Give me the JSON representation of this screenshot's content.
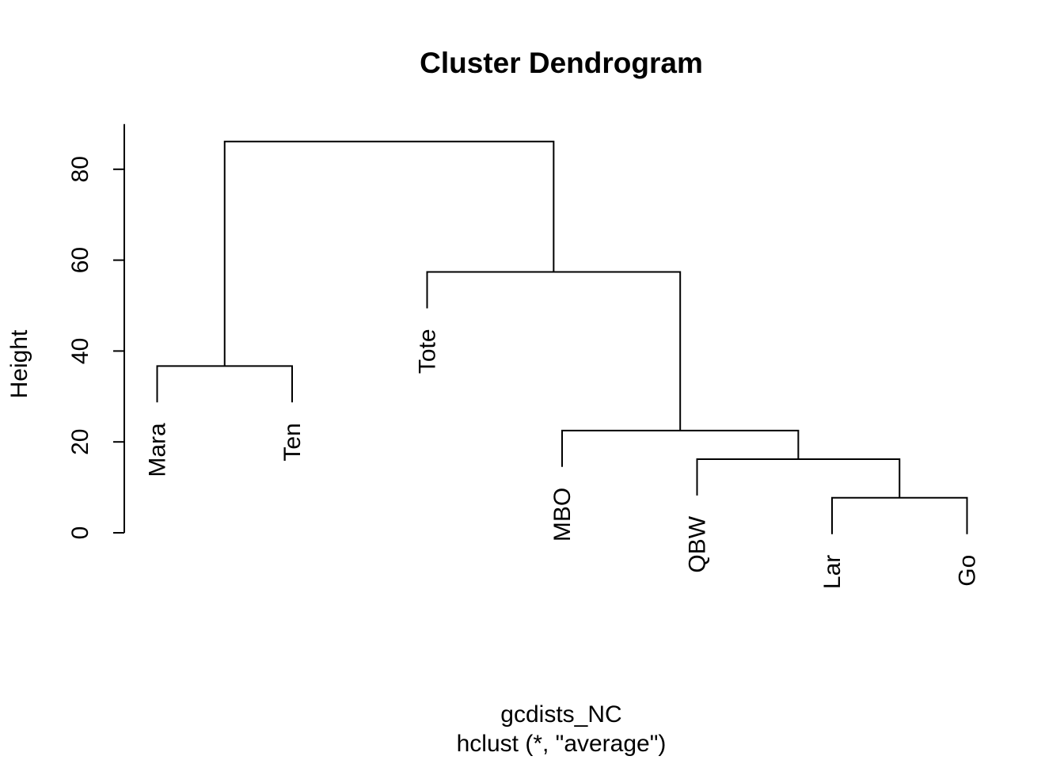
{
  "chart_data": {
    "type": "dendrogram",
    "title": "Cluster Dendrogram",
    "xlabel": "gcdists_NC",
    "sublabel": "hclust (*, \"average\")",
    "ylabel": "Height",
    "ylim": [
      0,
      90
    ],
    "y_ticks": [
      0,
      20,
      40,
      60,
      80
    ],
    "y_tick_labels": [
      "0",
      "20",
      "40",
      "60",
      "80"
    ],
    "hang": 8,
    "leaves": [
      {
        "label": "Mara"
      },
      {
        "label": "Ten"
      },
      {
        "label": "Tote"
      },
      {
        "label": "MBO"
      },
      {
        "label": "QBW"
      },
      {
        "label": "Lar"
      },
      {
        "label": "Go"
      }
    ],
    "merges": [
      {
        "left": "Lar",
        "right": "Go",
        "height": 7.7
      },
      {
        "left": "QBW",
        "right": [
          "Lar",
          "Go"
        ],
        "height": 16.2
      },
      {
        "left": "MBO",
        "right": [
          "QBW",
          "Lar",
          "Go"
        ],
        "height": 22.5
      },
      {
        "left": "Mara",
        "right": "Ten",
        "height": 36.7
      },
      {
        "left": "Tote",
        "right": [
          "MBO",
          "QBW",
          "Lar",
          "Go"
        ],
        "height": 57.4
      },
      {
        "left": [
          "Mara",
          "Ten"
        ],
        "right": [
          "Tote",
          "MBO",
          "QBW",
          "Lar",
          "Go"
        ],
        "height": 86.1
      }
    ]
  }
}
